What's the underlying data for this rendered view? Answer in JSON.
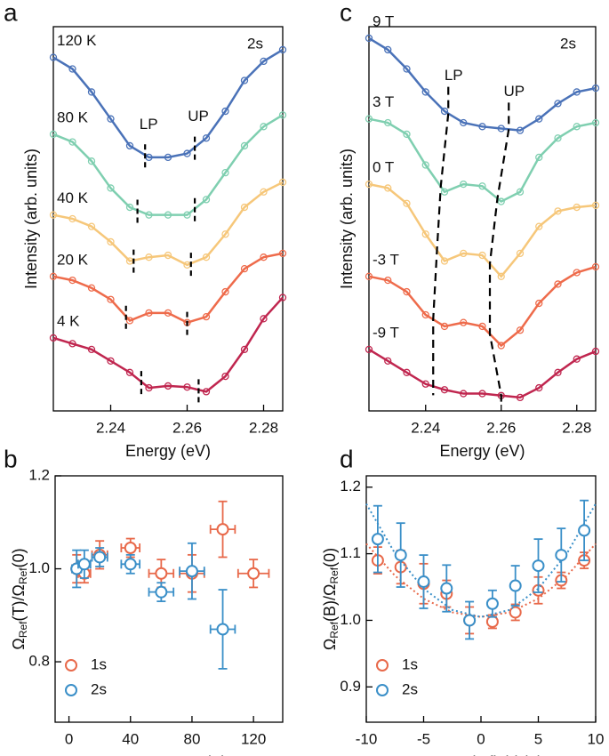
{
  "chart_data": [
    {
      "type": "line",
      "panel": "a",
      "xlabel": "Energy (eV)",
      "ylabel": "Intensity (arb. units)",
      "label": "2s",
      "lp_label": "LP",
      "up_label": "UP",
      "guide": "segments",
      "xlim": [
        2.225,
        2.285
      ],
      "xticks": [
        2.24,
        2.26,
        2.28
      ],
      "ylim": [
        0,
        10
      ],
      "x": [
        2.225,
        2.23,
        2.235,
        2.24,
        2.245,
        2.25,
        2.255,
        2.26,
        2.265,
        2.27,
        2.275,
        2.28,
        2.285
      ],
      "series": [
        {
          "name": "120 K",
          "color": "#4a72b8",
          "values": [
            9.2,
            8.9,
            8.3,
            7.6,
            6.9,
            6.6,
            6.6,
            6.7,
            7.1,
            7.8,
            8.6,
            9.1,
            9.4
          ],
          "lp": 2.249,
          "up": 2.262
        },
        {
          "name": "80 K",
          "color": "#7fcfb0",
          "values": [
            7.2,
            7.0,
            6.5,
            5.8,
            5.3,
            5.1,
            5.1,
            5.1,
            5.5,
            6.2,
            6.9,
            7.4,
            7.7
          ],
          "lp": 2.247,
          "up": 2.262
        },
        {
          "name": "40 K",
          "color": "#f6c77a",
          "values": [
            5.1,
            5.0,
            4.8,
            4.4,
            3.9,
            4.0,
            4.05,
            3.8,
            4.0,
            4.6,
            5.3,
            5.7,
            5.95
          ],
          "lp": 2.246,
          "up": 2.261
        },
        {
          "name": "20 K",
          "color": "#ee6b4b",
          "values": [
            3.5,
            3.4,
            3.2,
            2.9,
            2.35,
            2.55,
            2.55,
            2.3,
            2.45,
            3.1,
            3.7,
            4.0,
            4.1
          ],
          "lp": 2.244,
          "up": 2.26
        },
        {
          "name": "4 K",
          "color": "#c0264f",
          "values": [
            1.9,
            1.75,
            1.6,
            1.3,
            1.0,
            0.6,
            0.65,
            0.62,
            0.5,
            0.9,
            1.6,
            2.4,
            2.95
          ],
          "lp": 2.248,
          "up": 2.263
        }
      ]
    },
    {
      "type": "scatter",
      "panel": "b",
      "xlabel": "Temperature (K)",
      "ylabel": [
        "Ω",
        "Ref",
        "(T)/Ω",
        "Ref",
        "(0)"
      ],
      "xlim": [
        -9,
        139
      ],
      "xticks": [
        0,
        40,
        80,
        120
      ],
      "ylim": [
        0.67,
        1.2
      ],
      "yticks": [
        {
          "value": 0.8,
          "label": "0.8"
        },
        {
          "value": 1.0,
          "label": "1.0"
        },
        {
          "value": 1.2,
          "label": "1.2"
        }
      ],
      "legend": "lower left",
      "series": [
        {
          "name": "1s",
          "color": "#e8694a",
          "x": [
            5,
            10,
            20,
            40,
            60,
            80,
            100,
            120
          ],
          "values": [
            1.0,
            0.99,
            1.03,
            1.045,
            0.99,
            0.99,
            1.085,
            0.99
          ],
          "xerr": [
            3,
            4,
            5,
            6,
            8,
            8,
            8,
            10
          ],
          "yerr": [
            0.03,
            0.02,
            0.03,
            0.02,
            0.03,
            0.04,
            0.06,
            0.03
          ]
        },
        {
          "name": "2s",
          "color": "#3a8fc8",
          "x": [
            5,
            10,
            20,
            40,
            60,
            80,
            100
          ],
          "values": [
            1.0,
            1.01,
            1.025,
            1.01,
            0.95,
            0.995,
            0.87
          ],
          "xerr": [
            3,
            4,
            5,
            6,
            8,
            8,
            8
          ],
          "yerr": [
            0.04,
            0.03,
            0.02,
            0.02,
            0.02,
            0.06,
            0.085
          ]
        }
      ]
    },
    {
      "type": "line",
      "panel": "c",
      "xlabel": "Energy (eV)",
      "ylabel": "Intensity (arb. units)",
      "label": "2s",
      "lp_label": "LP",
      "up_label": "UP",
      "guide": "connected",
      "xlim": [
        2.225,
        2.285
      ],
      "xticks": [
        2.24,
        2.26,
        2.28
      ],
      "ylim": [
        0,
        10
      ],
      "x": [
        2.225,
        2.23,
        2.235,
        2.24,
        2.245,
        2.25,
        2.255,
        2.26,
        2.265,
        2.27,
        2.275,
        2.28,
        2.285
      ],
      "series": [
        {
          "name": "9 T",
          "color": "#4a72b8",
          "values": [
            9.7,
            9.4,
            8.9,
            8.3,
            7.8,
            7.5,
            7.4,
            7.35,
            7.3,
            7.6,
            8.0,
            8.3,
            8.4
          ],
          "lp": 2.246,
          "up": 2.262
        },
        {
          "name": "3 T",
          "color": "#7fcfb0",
          "values": [
            7.6,
            7.5,
            7.2,
            6.4,
            5.7,
            5.9,
            5.85,
            5.45,
            5.7,
            6.6,
            7.1,
            7.4,
            7.5
          ],
          "lp": 2.244,
          "up": 2.259
        },
        {
          "name": "0 T",
          "color": "#f6c77a",
          "values": [
            5.9,
            5.8,
            5.4,
            4.6,
            3.9,
            4.1,
            4.05,
            3.5,
            4.1,
            4.8,
            5.2,
            5.3,
            5.35
          ],
          "lp": 2.243,
          "up": 2.257
        },
        {
          "name": "-3 T",
          "color": "#ee6b4b",
          "values": [
            3.5,
            3.4,
            3.1,
            2.5,
            2.2,
            2.3,
            2.2,
            1.7,
            2.1,
            2.8,
            3.3,
            3.6,
            3.75
          ],
          "lp": 2.242,
          "up": 2.257
        },
        {
          "name": "-9 T",
          "color": "#c0264f",
          "values": [
            1.6,
            1.3,
            1.0,
            0.7,
            0.55,
            0.45,
            0.45,
            0.4,
            0.35,
            0.6,
            1.0,
            1.35,
            1.55
          ],
          "lp": 2.242,
          "up": 2.26
        }
      ]
    },
    {
      "type": "scatter",
      "panel": "d",
      "xlabel": "Magnetic field (T)",
      "ylabel": [
        "Ω",
        "Ref",
        "(B)/Ω",
        "Ref",
        "(0)"
      ],
      "xlim": [
        -10,
        10
      ],
      "xticks": [
        -10,
        -5,
        0,
        5,
        10
      ],
      "ylim": [
        0.847,
        1.217
      ],
      "yticks": [
        {
          "value": 0.9,
          "label": "0.9"
        },
        {
          "value": 1.0,
          "label": "1.0"
        },
        {
          "value": 1.1,
          "label": "1.1"
        },
        {
          "value": 1.2,
          "label": "1.2"
        }
      ],
      "legend": "lower left",
      "series": [
        {
          "name": "1s",
          "color": "#e8694a",
          "x": [
            -9,
            -7,
            -5,
            -3,
            -1,
            1,
            3,
            5,
            7,
            9
          ],
          "values": [
            1.09,
            1.08,
            1.055,
            1.04,
            1.0,
            0.998,
            1.012,
            1.045,
            1.06,
            1.09
          ],
          "yerr": [
            0.02,
            0.025,
            0.03,
            0.02,
            0.02,
            0.01,
            0.012,
            0.02,
            0.012,
            0.012
          ],
          "fit_x": [
            -10,
            -7.5,
            -5,
            -2.5,
            0,
            2.5,
            5,
            7.5,
            10
          ],
          "fit": [
            1.115,
            1.067,
            1.0325,
            1.012,
            1.005,
            1.012,
            1.0325,
            1.067,
            1.115
          ]
        },
        {
          "name": "2s",
          "color": "#3a8fc8",
          "x": [
            -9,
            -7,
            -5,
            -3,
            -1,
            1,
            3,
            5,
            7,
            9
          ],
          "values": [
            1.122,
            1.098,
            1.058,
            1.048,
            1.0,
            1.025,
            1.052,
            1.082,
            1.098,
            1.135
          ],
          "yerr": [
            0.05,
            0.048,
            0.04,
            0.035,
            0.028,
            0.02,
            0.03,
            0.04,
            0.04,
            0.045
          ],
          "fit_x": [
            -10,
            -7.5,
            -5,
            -2.5,
            0,
            2.5,
            5,
            7.5,
            10
          ],
          "fit": [
            1.175,
            1.1006,
            1.0475,
            1.0156,
            1.005,
            1.0156,
            1.0475,
            1.1006,
            1.175
          ]
        }
      ]
    }
  ]
}
